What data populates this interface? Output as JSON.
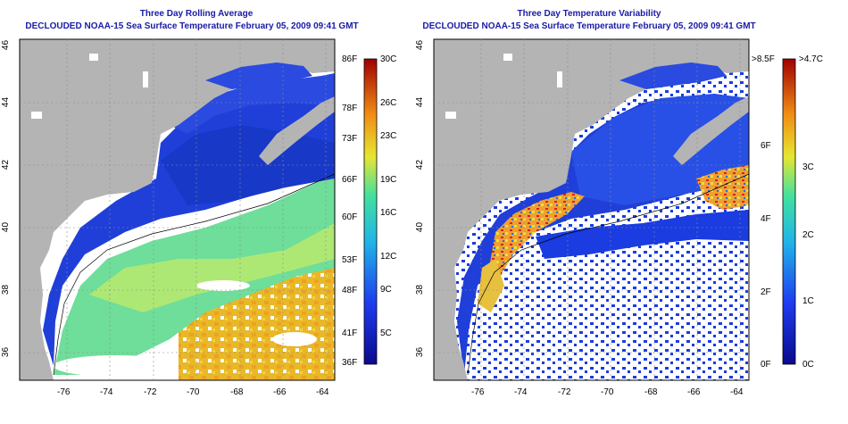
{
  "left_panel": {
    "title": "Three Day Rolling Average",
    "subtitle": "DECLOUDED NOAA-15 Sea Surface Temperature February 05, 2009 09:41 GMT",
    "x_ticks": [
      "-76",
      "-74",
      "-72",
      "-70",
      "-68",
      "-66",
      "-64"
    ],
    "y_ticks": [
      "46",
      "44",
      "42",
      "40",
      "38",
      "36"
    ],
    "colorbar": {
      "f_labels": [
        "86F",
        "78F",
        "73F",
        "66F",
        "60F",
        "53F",
        "48F",
        "41F",
        "36F"
      ],
      "c_labels": [
        "30C",
        "26C",
        "23C",
        "19C",
        "16C",
        "12C",
        "9C",
        "5C"
      ]
    }
  },
  "right_panel": {
    "title": "Three Day Temperature Variability",
    "subtitle": "DECLOUDED NOAA-15 Sea Surface Temperature February 05, 2009 09:41 GMT",
    "x_ticks": [
      "-76",
      "-74",
      "-72",
      "-70",
      "-68",
      "-66",
      "-64"
    ],
    "y_ticks": [
      "46",
      "44",
      "42",
      "40",
      "38",
      "36"
    ],
    "colorbar": {
      "f_labels": [
        ">8.5F",
        "6F",
        "4F",
        "2F",
        "0F"
      ],
      "c_labels": [
        ">4.7C",
        "3C",
        "2C",
        "1C",
        "0C"
      ]
    }
  },
  "colors": {
    "title": "#1a1aa8",
    "land": "#b4b4b4",
    "no_data": "#ffffff",
    "cold_water": "#1f3fd8"
  }
}
